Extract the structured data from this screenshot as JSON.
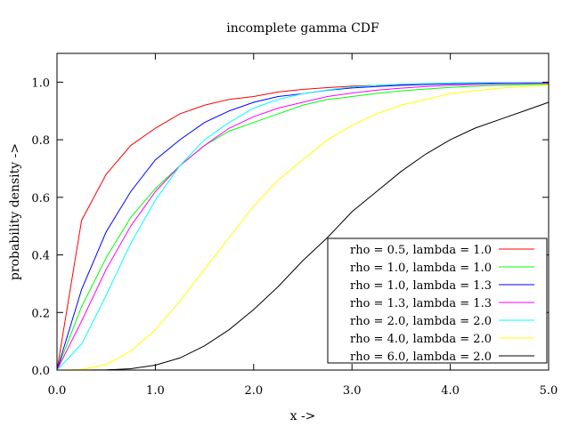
{
  "chart_data": {
    "type": "line",
    "title": "incomplete gamma CDF",
    "xlabel": "x ->",
    "ylabel": "probability density ->",
    "xlim": [
      0,
      5
    ],
    "ylim": [
      0,
      1.1
    ],
    "grid": false,
    "legend_position": "bottom-right",
    "x_ticks": [
      {
        "value": 0,
        "label": "0.0"
      },
      {
        "value": 1,
        "label": "1.0"
      },
      {
        "value": 2,
        "label": "2.0"
      },
      {
        "value": 3,
        "label": "3.0"
      },
      {
        "value": 4,
        "label": "4.0"
      },
      {
        "value": 5,
        "label": "5.0"
      }
    ],
    "y_ticks": [
      {
        "value": 0,
        "label": "0.0"
      },
      {
        "value": 0.2,
        "label": "0.2"
      },
      {
        "value": 0.4,
        "label": "0.4"
      },
      {
        "value": 0.6,
        "label": "0.6"
      },
      {
        "value": 0.8,
        "label": "0.8"
      },
      {
        "value": 1.0,
        "label": "1.0"
      }
    ],
    "x": [
      0,
      0.25,
      0.5,
      0.75,
      1.0,
      1.25,
      1.5,
      1.75,
      2.0,
      2.25,
      2.5,
      2.75,
      3.0,
      3.25,
      3.5,
      3.75,
      4.0,
      4.25,
      4.5,
      4.75,
      5.0
    ],
    "series": [
      {
        "name": "rho = 0.5, lambda = 1.0",
        "color": "#ff0000",
        "rho": 0.5,
        "lambda": 1.0,
        "values": [
          0,
          0.52,
          0.68,
          0.78,
          0.84,
          0.89,
          0.92,
          0.94,
          0.95,
          0.966,
          0.975,
          0.981,
          0.986,
          0.989,
          0.992,
          0.994,
          0.995,
          0.996,
          0.997,
          0.998,
          0.998
        ]
      },
      {
        "name": "rho = 1.0, lambda = 1.0",
        "color": "#00ff00",
        "rho": 1.0,
        "lambda": 1.0,
        "values": [
          0,
          0.22,
          0.39,
          0.53,
          0.63,
          0.71,
          0.78,
          0.83,
          0.86,
          0.89,
          0.92,
          0.94,
          0.95,
          0.961,
          0.97,
          0.976,
          0.982,
          0.986,
          0.989,
          0.991,
          0.993
        ]
      },
      {
        "name": "rho = 1.0, lambda = 1.3",
        "color": "#0000ff",
        "rho": 1.0,
        "lambda": 1.3,
        "values": [
          0,
          0.28,
          0.48,
          0.62,
          0.73,
          0.8,
          0.86,
          0.9,
          0.93,
          0.95,
          0.96,
          0.972,
          0.98,
          0.985,
          0.989,
          0.992,
          0.994,
          0.996,
          0.997,
          0.998,
          0.9985
        ]
      },
      {
        "name": "rho = 1.3, lambda = 1.3",
        "color": "#ff00ff",
        "rho": 1.3,
        "lambda": 1.3,
        "values": [
          0,
          0.17,
          0.35,
          0.5,
          0.62,
          0.71,
          0.78,
          0.84,
          0.88,
          0.91,
          0.93,
          0.95,
          0.962,
          0.972,
          0.979,
          0.985,
          0.989,
          0.992,
          0.994,
          0.995,
          0.996
        ]
      },
      {
        "name": "rho = 2.0, lambda = 2.0",
        "color": "#00ffff",
        "rho": 2.0,
        "lambda": 2.0,
        "values": [
          0,
          0.09,
          0.26,
          0.44,
          0.59,
          0.71,
          0.8,
          0.86,
          0.91,
          0.94,
          0.96,
          0.973,
          0.983,
          0.989,
          0.993,
          0.995,
          0.997,
          0.998,
          0.9988,
          0.9992,
          0.9995
        ]
      },
      {
        "name": "rho = 4.0, lambda = 2.0",
        "color": "#ffff00",
        "rho": 4.0,
        "lambda": 2.0,
        "values": [
          0,
          0.002,
          0.019,
          0.066,
          0.14,
          0.24,
          0.35,
          0.46,
          0.57,
          0.66,
          0.73,
          0.8,
          0.85,
          0.89,
          0.92,
          0.94,
          0.96,
          0.97,
          0.979,
          0.985,
          0.99
        ]
      },
      {
        "name": "rho = 6.0, lambda = 2.0",
        "color": "#000000",
        "rho": 6.0,
        "lambda": 2.0,
        "values": [
          0,
          0.0001,
          0.0006,
          0.0045,
          0.017,
          0.042,
          0.084,
          0.14,
          0.21,
          0.29,
          0.38,
          0.46,
          0.55,
          0.62,
          0.69,
          0.75,
          0.8,
          0.84,
          0.87,
          0.9,
          0.93
        ]
      }
    ]
  }
}
